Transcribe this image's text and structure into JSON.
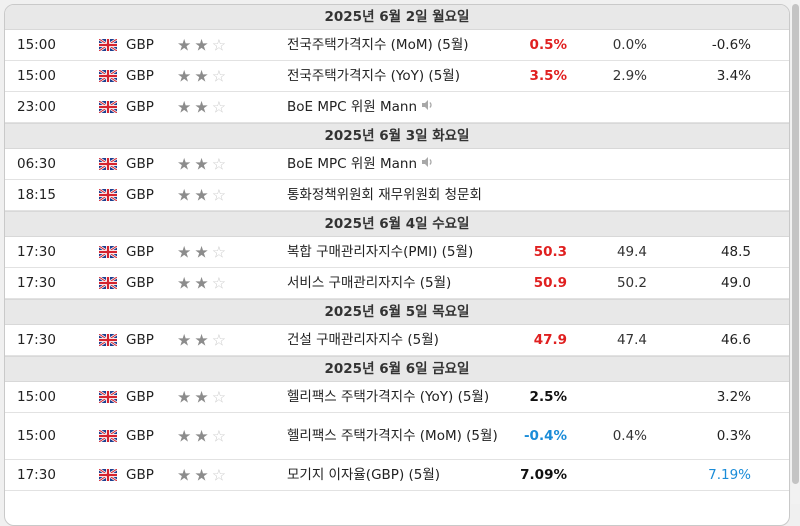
{
  "currency_code": "GBP",
  "flag_icon": "uk-flag-icon",
  "speaker_icon": "speaker-icon",
  "star_glyphs": {
    "filled": "★",
    "empty": "☆"
  },
  "colors": {
    "higher": "#e02020",
    "lower": "#1a8cd8",
    "header_bg": "#e8e8e8"
  },
  "days": [
    {
      "date": "2025년 6월 2일 월요일",
      "events": [
        {
          "time": "15:00",
          "importance": 2,
          "name": "전국주택가격지수 (MoM) (5월)",
          "actual": "0.5%",
          "actual_color": "red",
          "forecast": "0.0%",
          "previous": "-0.6%"
        },
        {
          "time": "15:00",
          "importance": 2,
          "name": "전국주택가격지수 (YoY) (5월)",
          "actual": "3.5%",
          "actual_color": "red",
          "forecast": "2.9%",
          "previous": "3.4%"
        },
        {
          "time": "23:00",
          "importance": 2,
          "name": "BoE MPC 위원 Mann",
          "speech": true,
          "actual": "",
          "forecast": "",
          "previous": ""
        }
      ]
    },
    {
      "date": "2025년 6월 3일 화요일",
      "events": [
        {
          "time": "06:30",
          "importance": 2,
          "name": "BoE MPC 위원 Mann",
          "speech": true,
          "actual": "",
          "forecast": "",
          "previous": ""
        },
        {
          "time": "18:15",
          "importance": 2,
          "name": "통화정책위원회 재무위원회 청문회",
          "actual": "",
          "forecast": "",
          "previous": ""
        }
      ]
    },
    {
      "date": "2025년 6월 4일 수요일",
      "events": [
        {
          "time": "17:30",
          "importance": 2,
          "name": "복합 구매관리자지수(PMI) (5월)",
          "actual": "50.3",
          "actual_color": "red",
          "forecast": "49.4",
          "previous": "48.5"
        },
        {
          "time": "17:30",
          "importance": 2,
          "name": "서비스 구매관리자지수 (5월)",
          "actual": "50.9",
          "actual_color": "red",
          "forecast": "50.2",
          "previous": "49.0"
        }
      ]
    },
    {
      "date": "2025년 6월 5일 목요일",
      "events": [
        {
          "time": "17:30",
          "importance": 2,
          "name": "건설 구매관리자지수 (5월)",
          "actual": "47.9",
          "actual_color": "red",
          "forecast": "47.4",
          "previous": "46.6"
        }
      ]
    },
    {
      "date": "2025년 6월 6일 금요일",
      "events": [
        {
          "time": "15:00",
          "importance": 2,
          "name": "헬리팩스 주택가격지수 (YoY) (5월)",
          "actual": "2.5%",
          "actual_color": "black",
          "forecast": "",
          "previous": "3.2%"
        },
        {
          "time": "15:00",
          "importance": 2,
          "name": "헬리팩스 주택가격지수 (MoM) (5월)",
          "actual": "-0.4%",
          "actual_color": "blue",
          "forecast": "0.4%",
          "previous": "0.3%",
          "tall": true
        },
        {
          "time": "17:30",
          "importance": 2,
          "name": "모기지 이자율(GBP) (5월)",
          "actual": "7.09%",
          "actual_color": "black",
          "forecast": "",
          "previous": "7.19%",
          "previous_color": "blue"
        }
      ]
    }
  ]
}
